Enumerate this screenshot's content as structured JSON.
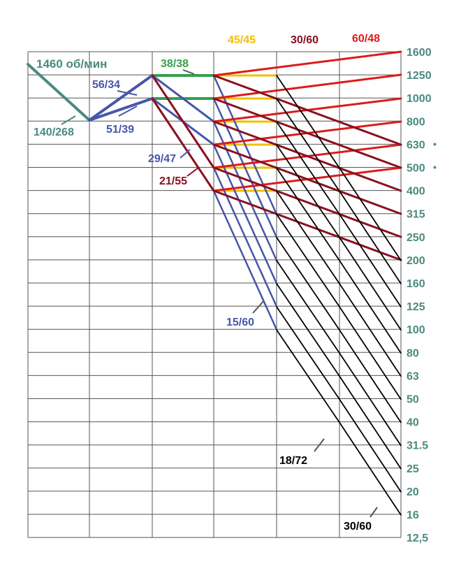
{
  "colors": {
    "teal": "#4a8a80",
    "blue": "#4656a8",
    "green": "#34a04a",
    "yellow": "#f0c000",
    "dark_red": "#8a1020",
    "red": "#dd1a1a",
    "black": "#000000",
    "grid": "#555555"
  },
  "motor": {
    "label": "1460 об/мин"
  },
  "speeds": [
    "1600",
    "1250",
    "1000",
    "800",
    "630",
    "500",
    "400",
    "315",
    "250",
    "200",
    "160",
    "125",
    "100",
    "80",
    "63",
    "50",
    "40",
    "31.5",
    "25",
    "20",
    "16",
    "12,5"
  ],
  "gear_labels": {
    "g140_268": "140/268",
    "g56_34": "56/34",
    "g51_39": "51/39",
    "g38_38": "38/38",
    "g29_47": "29/47",
    "g21_55": "21/55",
    "g15_60": "15/60",
    "g45_45": "45/45",
    "g30_60_top": "30/60",
    "g60_48": "60/48",
    "g18_72": "18/72",
    "g30_60_bottom": "30/60"
  },
  "marks": {
    "dot_630": "•",
    "dot_500": "•"
  }
}
